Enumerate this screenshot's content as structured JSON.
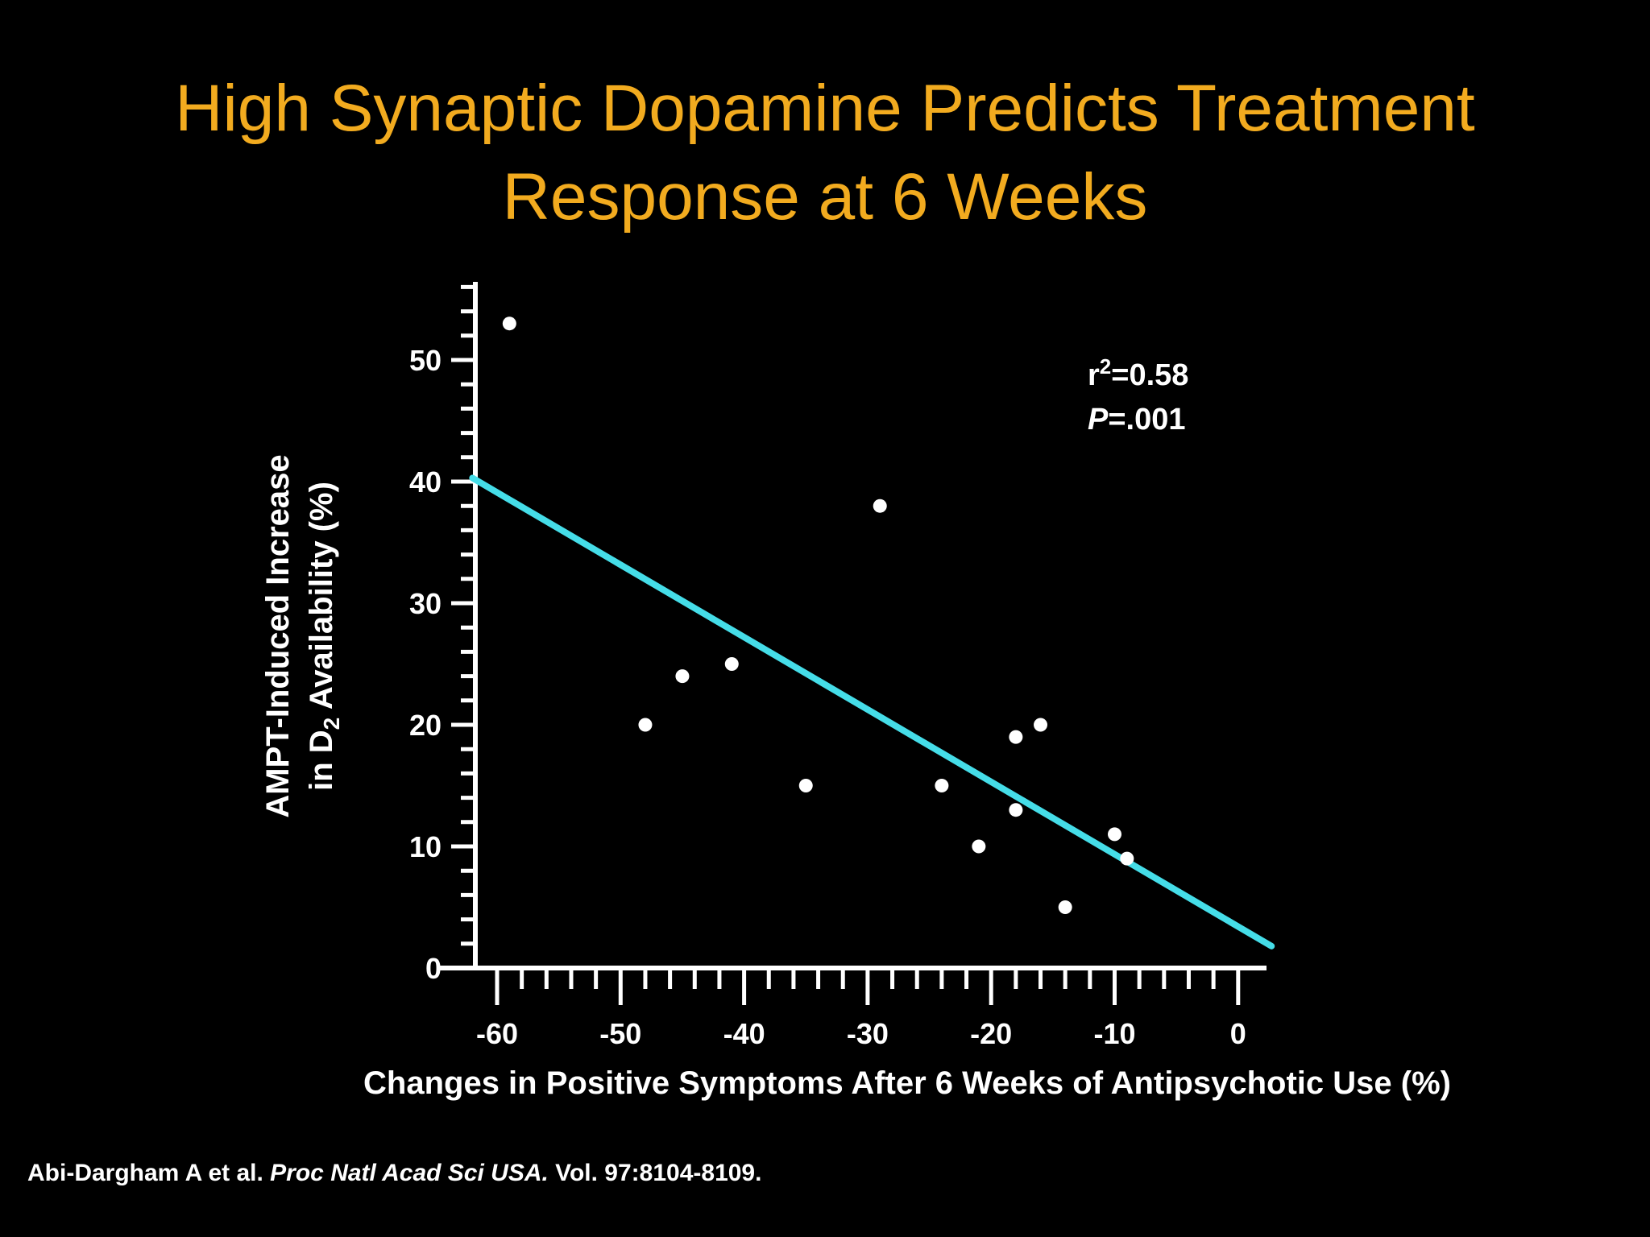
{
  "slide": {
    "title_line1": "High Synaptic Dopamine Predicts Treatment",
    "title_line2": "Response at 6 Weeks",
    "title_color": "#f2ab1f",
    "citation": {
      "authors": "Abi-Dargham A et al. ",
      "journal": "Proc Natl Acad Sci USA.",
      "volume": " Vol. 97:8104-8109."
    }
  },
  "chart_data": {
    "type": "scatter",
    "xlabel": "Changes in Positive Symptoms After 6 Weeks of Antipsychotic Use (%)",
    "ylabel_line1": "AMPT-Induced Increase",
    "ylabel_line2_prefix": "in D",
    "ylabel_line2_sub": "2",
    "ylabel_line2_suffix": " Availability (%)",
    "xlim": [
      -63,
      3
    ],
    "ylim": [
      0,
      56
    ],
    "x_ticks": [
      -60,
      -50,
      -40,
      -30,
      -20,
      -10,
      0
    ],
    "y_ticks": [
      0,
      10,
      20,
      30,
      40,
      50
    ],
    "points": [
      {
        "x": -59,
        "y": 53
      },
      {
        "x": -48,
        "y": 20
      },
      {
        "x": -45,
        "y": 24
      },
      {
        "x": -41,
        "y": 25
      },
      {
        "x": -35,
        "y": 15
      },
      {
        "x": -29,
        "y": 38
      },
      {
        "x": -24,
        "y": 15
      },
      {
        "x": -21,
        "y": 10
      },
      {
        "x": -18,
        "y": 19
      },
      {
        "x": -18,
        "y": 13
      },
      {
        "x": -16,
        "y": 20
      },
      {
        "x": -14,
        "y": 5
      },
      {
        "x": -10,
        "y": 11
      },
      {
        "x": -9,
        "y": 9
      }
    ],
    "regression": {
      "x_start": -62,
      "y_start": 40.3,
      "x_end": 2.7,
      "y_end": 1.8,
      "color": "#45dde8"
    },
    "annotation": {
      "r_label": "r",
      "r_sup": "2",
      "r_value": "=0.58",
      "p_label": "P",
      "p_value": "=.001"
    },
    "grid": false
  }
}
